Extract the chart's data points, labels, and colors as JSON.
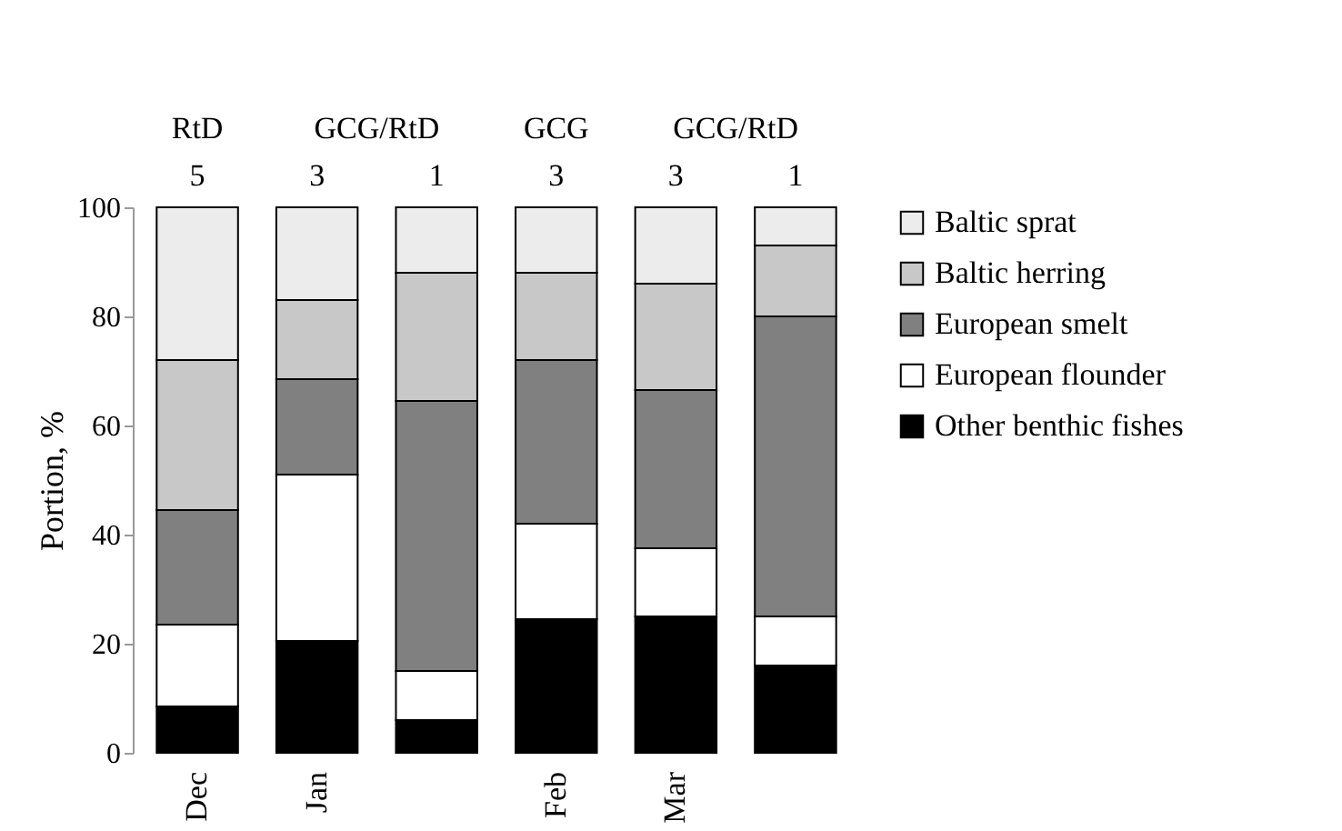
{
  "chart_data": {
    "type": "bar",
    "stacked": true,
    "ylabel": "Portion, %",
    "ylim": [
      0,
      100
    ],
    "yticks": [
      0,
      20,
      40,
      60,
      80,
      100
    ],
    "grid": false,
    "legend": "right",
    "categories": [
      "Dec",
      "Jan",
      null,
      "Feb",
      "Mar",
      null
    ],
    "series": [
      {
        "name": "Other benthic fishes",
        "color": "#000000",
        "values": [
          8.5,
          20.5,
          6,
          24.5,
          25,
          16
        ]
      },
      {
        "name": "European flounder",
        "color": "#ffffff",
        "values": [
          15,
          30.5,
          9,
          17.5,
          12.5,
          9
        ]
      },
      {
        "name": "European smelt",
        "color": "#808080",
        "values": [
          21,
          17.5,
          49.5,
          30,
          29,
          55
        ]
      },
      {
        "name": "Baltic herring",
        "color": "#c8c8c8",
        "values": [
          27.5,
          14.5,
          23.5,
          16,
          19.5,
          13
        ]
      },
      {
        "name": "Baltic sprat",
        "color": "#ececec",
        "values": [
          28,
          17,
          12,
          12,
          14,
          7
        ]
      }
    ],
    "annotations": [
      "RtD",
      "GCG/RtD",
      "GCG",
      "GCG/RtD",
      "5",
      "3",
      "1",
      "3",
      "3",
      "1"
    ]
  }
}
